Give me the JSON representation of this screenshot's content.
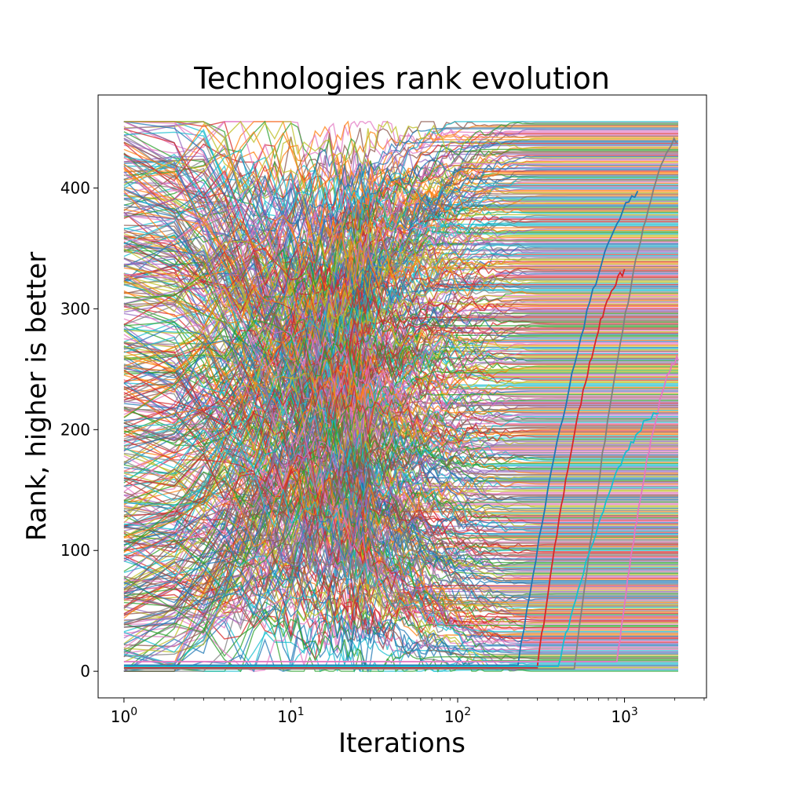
{
  "chart_data": {
    "type": "line",
    "title": "Technologies rank evolution",
    "xlabel": "Iterations",
    "ylabel": "Rank, higher is better",
    "x_scale": "log",
    "xlim": [
      0.7,
      3100
    ],
    "ylim": [
      -22,
      477
    ],
    "x_range": [
      1,
      2100
    ],
    "y_range": [
      0,
      455
    ],
    "grid": false,
    "legend": "none",
    "series_count": 456,
    "xticks": [
      {
        "value": 1,
        "base": "10",
        "exp": "0"
      },
      {
        "value": 10,
        "base": "10",
        "exp": "1"
      },
      {
        "value": 100,
        "base": "10",
        "exp": "2"
      },
      {
        "value": 1000,
        "base": "10",
        "exp": "3"
      }
    ],
    "yticks": [
      {
        "value": 0,
        "label": "0"
      },
      {
        "value": 100,
        "label": "100"
      },
      {
        "value": 200,
        "label": "200"
      },
      {
        "value": 300,
        "label": "300"
      },
      {
        "value": 400,
        "label": "400"
      }
    ],
    "colors": [
      "#1f77b4",
      "#ff7f0e",
      "#2ca02c",
      "#d62728",
      "#9467bd",
      "#8c564b",
      "#e377c2",
      "#7f7f7f",
      "#bcbd22",
      "#17becf"
    ],
    "late_climbers": [
      {
        "start_rank": 2,
        "end_rank": 440,
        "start_x": 500,
        "end_x": 2050
      },
      {
        "start_rank": 5,
        "end_rank": 395,
        "start_x": 230,
        "end_x": 1200
      },
      {
        "start_rank": 3,
        "end_rank": 330,
        "start_x": 300,
        "end_x": 1000
      },
      {
        "start_rank": 8,
        "end_rank": 260,
        "start_x": 900,
        "end_x": 2100
      },
      {
        "start_rank": 4,
        "end_rank": 215,
        "start_x": 400,
        "end_x": 1600
      }
    ]
  }
}
